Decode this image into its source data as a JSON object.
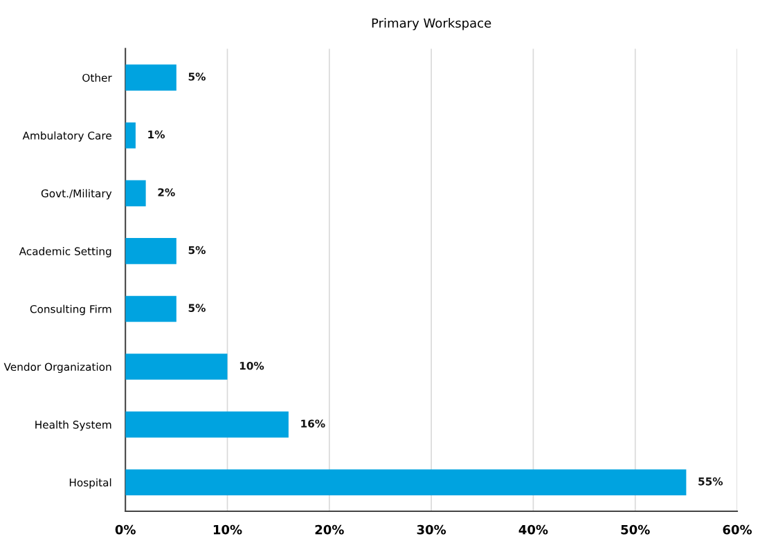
{
  "chart_data": {
    "type": "bar",
    "orientation": "horizontal",
    "title": "Primary Workspace",
    "categories": [
      "Other",
      "Ambulatory Care",
      "Govt./Military",
      "Academic Setting",
      "Consulting Firm",
      "Vendor Organization",
      "Health System",
      "Hospital"
    ],
    "values": [
      5,
      1,
      2,
      5,
      5,
      10,
      16,
      55
    ],
    "color": "#00a3e0",
    "xlim": [
      0,
      60
    ],
    "xticks": [
      {
        "value": 0,
        "label": "0%"
      },
      {
        "value": 10,
        "label": "10%"
      },
      {
        "value": 20,
        "label": "20%"
      },
      {
        "value": 30,
        "label": "30%"
      },
      {
        "value": 40,
        "label": "40%"
      },
      {
        "value": 50,
        "label": "50%"
      },
      {
        "value": 60,
        "label": "60%"
      }
    ],
    "value_labels": [
      "5%",
      "1%",
      "2%",
      "5%",
      "5%",
      "10%",
      "16%",
      "55%"
    ],
    "grid": "x",
    "legend": false
  }
}
